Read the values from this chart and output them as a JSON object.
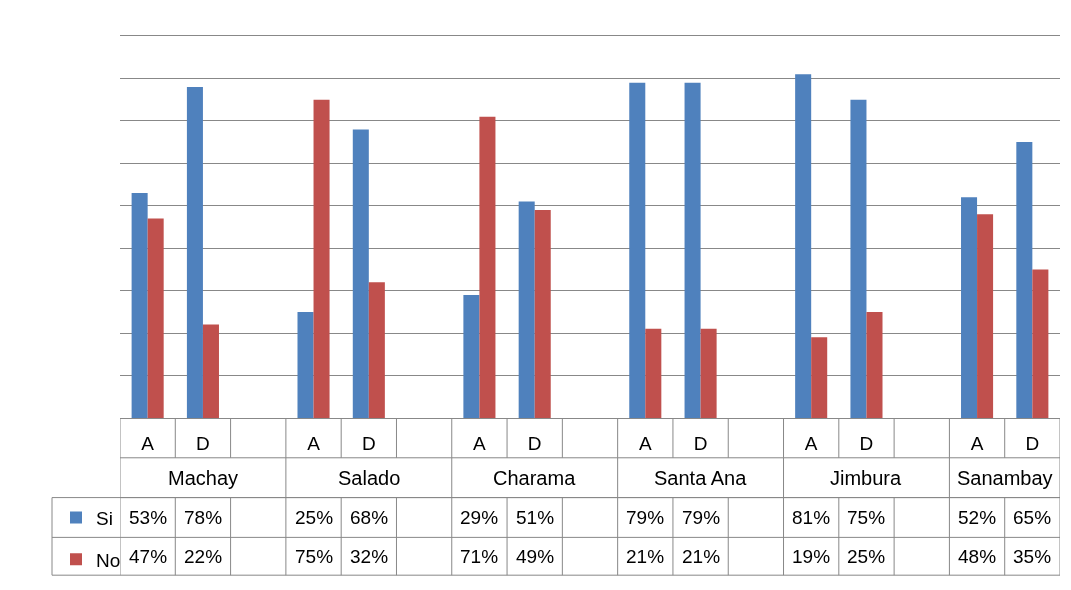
{
  "chart_data": {
    "type": "bar",
    "categories": [
      "A",
      "D",
      null,
      "A",
      "D",
      null,
      "A",
      "D",
      null,
      "A",
      "D",
      null,
      "A",
      "D",
      null,
      "A",
      "D"
    ],
    "series": [
      {
        "name": "Si",
        "color": "#4f81bd",
        "values": [
          53,
          78,
          null,
          25,
          68,
          null,
          29,
          51,
          null,
          79,
          79,
          null,
          81,
          75,
          null,
          52,
          65
        ],
        "value_labels": [
          "53%",
          "78%",
          null,
          "25%",
          "68%",
          null,
          "29%",
          "51%",
          null,
          "79%",
          "79%",
          null,
          "81%",
          "75%",
          null,
          "52%",
          "65%"
        ]
      },
      {
        "name": "No",
        "color": "#c0504d",
        "values": [
          47,
          22,
          null,
          75,
          32,
          null,
          71,
          49,
          null,
          21,
          21,
          null,
          19,
          25,
          null,
          48,
          35
        ],
        "value_labels": [
          "47%",
          "22%",
          null,
          "75%",
          "32%",
          null,
          "71%",
          "49%",
          null,
          "21%",
          "21%",
          null,
          "19%",
          "25%",
          null,
          "48%",
          "35%"
        ]
      }
    ],
    "annotations": [
      "Machay",
      "Salado",
      "Charama",
      "Santa Ana",
      "Jimbura",
      "Sanambay"
    ],
    "ylim": [
      0,
      90
    ],
    "yticks": [
      {
        "value": 0,
        "label": null
      },
      {
        "value": 10,
        "label": null
      },
      {
        "value": 20,
        "label": null
      },
      {
        "value": 30,
        "label": null
      },
      {
        "value": 40,
        "label": null
      },
      {
        "value": 50,
        "label": null
      },
      {
        "value": 60,
        "label": null
      },
      {
        "value": 70,
        "label": null
      },
      {
        "value": 80,
        "label": null
      },
      {
        "value": 90,
        "label": null
      }
    ],
    "grid": "y",
    "tick_labels": "x",
    "legend": "bottom left"
  }
}
